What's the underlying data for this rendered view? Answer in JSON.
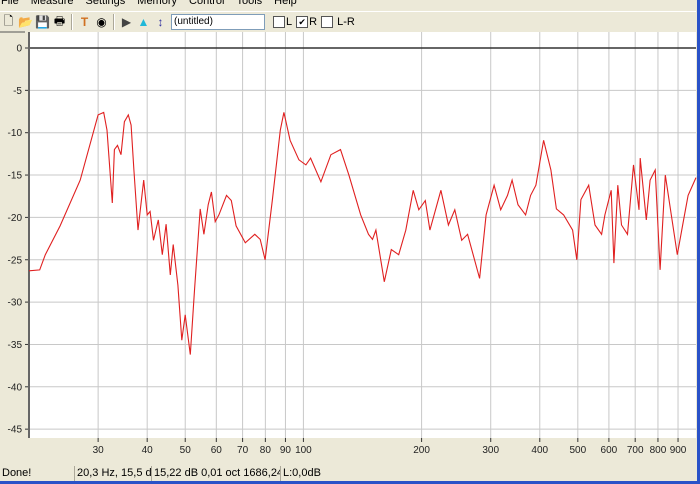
{
  "menu": [
    "File",
    "Measure",
    "Settings",
    "Memory",
    "Control",
    "Tools",
    "Help"
  ],
  "toolbar": {
    "icons": [
      "new-file-icon",
      "open-folder-icon",
      "save-icon",
      "print-icon",
      "tuning-fork-icon",
      "record-icon",
      "play-icon",
      "generator-icon",
      "cursor-icon"
    ],
    "title_value": "(untitled)",
    "checkboxes": [
      {
        "label": "L",
        "checked": false
      },
      {
        "label": "R",
        "checked": true
      },
      {
        "label": "L-R",
        "checked": false
      }
    ]
  },
  "status": {
    "message": "Done!",
    "cursor": "20,3 Hz, 15,5 d",
    "readout": "15,22 dB 0,01 oct 1686,24 (",
    "level": "L:0,0dB"
  },
  "colors": {
    "trace": "#e02020",
    "grid": "#c8c8c8",
    "zero_line": "#333333",
    "window_border": "#2a52c8"
  },
  "chart_data": {
    "type": "line",
    "x_scale": "log",
    "xlim": [
      20,
      1000
    ],
    "ylim": [
      -46,
      2
    ],
    "grid": true,
    "x_ticks": [
      30,
      40,
      50,
      60,
      70,
      80,
      90,
      100,
      200,
      300,
      400,
      500,
      600,
      700,
      800,
      900
    ],
    "y_ticks": [
      0,
      -5,
      -10,
      -15,
      -20,
      -25,
      -30,
      -35,
      -40,
      -45
    ],
    "series": [
      {
        "x": [
          20,
          21.3,
          22,
          24,
          27,
          30,
          31,
          31.6,
          32.6,
          33,
          33.6,
          34.3,
          35,
          35.8,
          36.4,
          37,
          37.9,
          39.2,
          40,
          40.7,
          41.5,
          42.7,
          43.7,
          44.7,
          45.8,
          46.6,
          47.9,
          49,
          50,
          51.5,
          52.8,
          54.6,
          55.8,
          57.2,
          58.3,
          59.6,
          60.9,
          63.7,
          65.5,
          67.4,
          71.1,
          75.2,
          77.6,
          79.9,
          83.3,
          87.3,
          89.2,
          92.5,
          97.4,
          101.5,
          104.3,
          110.8,
          117.5,
          124.3,
          130.6,
          139.9,
          146.5,
          150,
          153,
          160.7,
          167.4,
          174.9,
          182.3,
          190.4,
          196.7,
          204.4,
          210,
          224,
          234,
          243,
          253,
          262,
          281,
          292,
          306,
          318,
          331,
          340,
          352,
          368,
          379,
          391,
          409,
          427,
          441,
          460,
          485,
          497,
          509,
          533,
          553,
          575,
          586,
          608,
          618,
          632,
          646,
          669,
          693,
          716,
          721,
          747,
          764,
          787,
          810,
          835,
          865,
          896,
          930,
          955,
          1000
        ],
        "y": [
          -26.3,
          -26.2,
          -24.4,
          -21,
          -15.6,
          -7.9,
          -7.6,
          -9.7,
          -18.3,
          -12,
          -11.5,
          -12.6,
          -8.7,
          -7.9,
          -9.1,
          -14.4,
          -21.5,
          -15.6,
          -19.7,
          -19.3,
          -22.7,
          -20.3,
          -24.4,
          -20.8,
          -26.8,
          -23.2,
          -28,
          -34.5,
          -31.5,
          -36.2,
          -28.6,
          -19,
          -22,
          -18.5,
          -17,
          -20.5,
          -19.7,
          -17.4,
          -18,
          -21,
          -23,
          -22,
          -22.6,
          -25,
          -18,
          -9.7,
          -7.6,
          -10.9,
          -13.2,
          -13.8,
          -13,
          -15.8,
          -12.6,
          -12,
          -15,
          -19.7,
          -22,
          -22.6,
          -21.5,
          -27.6,
          -23.8,
          -24.4,
          -21.5,
          -16.8,
          -19.1,
          -18,
          -21.5,
          -16.8,
          -20.9,
          -19.1,
          -22.7,
          -22,
          -27.2,
          -19.7,
          -16.2,
          -19.1,
          -17.4,
          -15.6,
          -18.5,
          -19.7,
          -17.4,
          -16.2,
          -10.9,
          -14.4,
          -19,
          -19.7,
          -21.5,
          -25,
          -17.9,
          -16.2,
          -20.9,
          -22,
          -19.7,
          -16.8,
          -25.4,
          -16.2,
          -20.9,
          -22,
          -13.8,
          -19.1,
          -13,
          -20.3,
          -15.6,
          -14.4,
          -26.2,
          -15,
          -19.7,
          -24.4,
          -20.3,
          -17.4,
          -15.3
        ]
      }
    ]
  }
}
